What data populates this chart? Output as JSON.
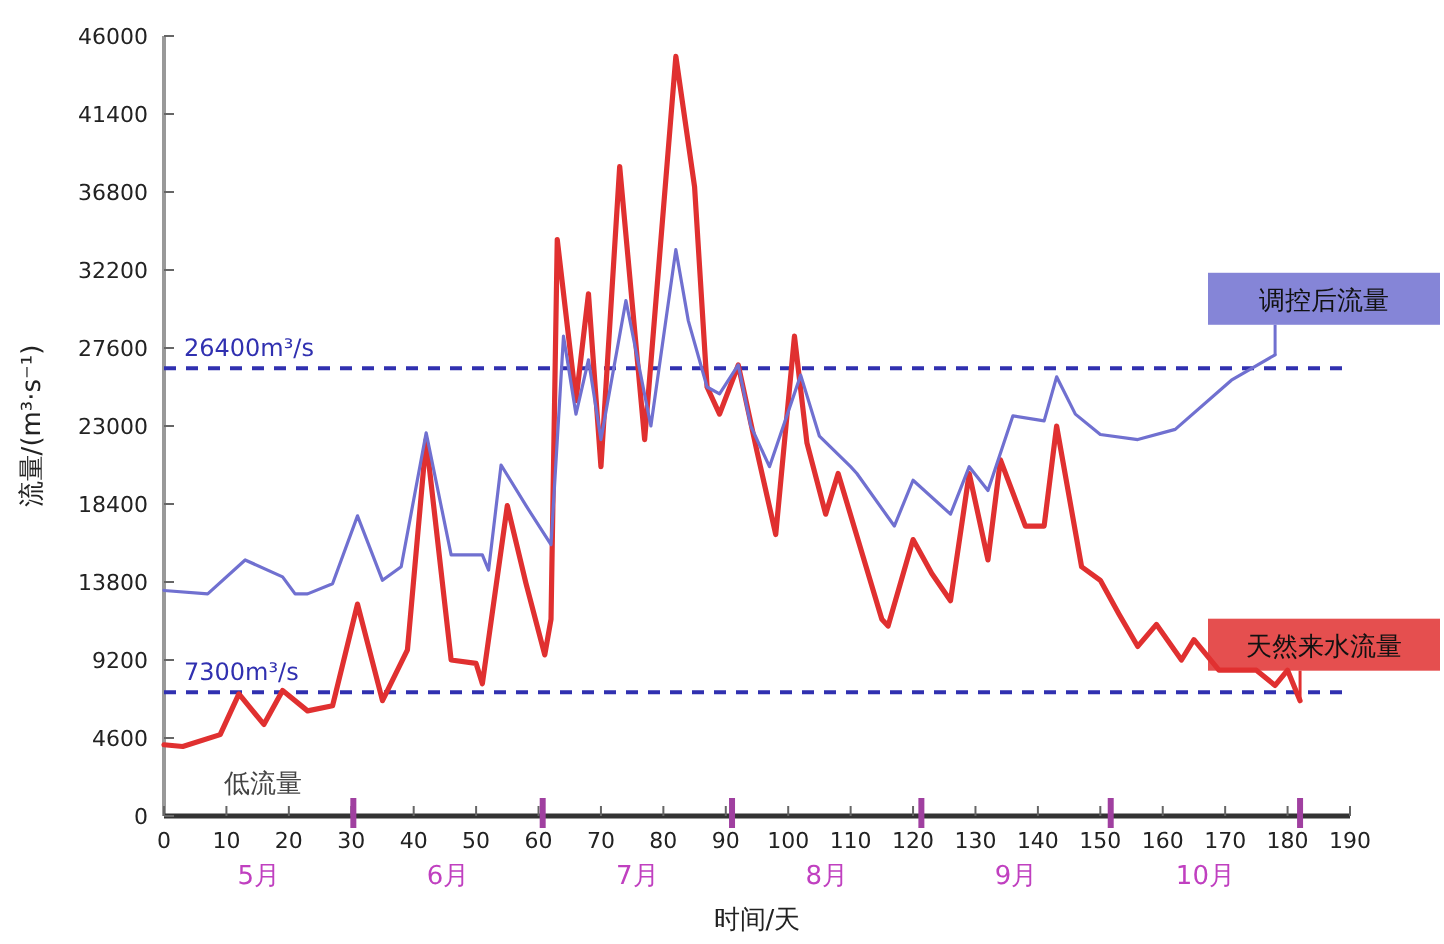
{
  "chart_data": {
    "type": "line",
    "xlabel": "时间/天",
    "ylabel": "流量/(m³·s⁻¹)",
    "xlim": [
      0,
      190
    ],
    "xticks": [
      0,
      10,
      20,
      30,
      40,
      50,
      60,
      70,
      80,
      90,
      100,
      110,
      120,
      130,
      140,
      150,
      160,
      170,
      180,
      190
    ],
    "ylim": [
      0,
      46000
    ],
    "yticks": [
      0,
      4600,
      9200,
      13800,
      18400,
      23000,
      27600,
      32200,
      36800,
      41400,
      46000
    ],
    "grid": false,
    "marker": "none",
    "line_style": "solid",
    "series": [
      {
        "name": "调控后流量",
        "color": "#7070d0",
        "x": [
          0,
          7,
          13,
          19,
          21,
          23,
          27,
          31,
          35,
          38,
          42,
          46,
          51,
          52,
          54,
          58,
          62,
          64,
          66,
          68,
          70,
          74,
          78,
          82,
          84,
          87,
          89,
          92,
          94,
          97,
          102,
          105,
          110,
          111,
          117,
          120,
          126,
          129,
          132,
          136,
          141,
          143,
          146,
          150,
          156,
          162,
          171,
          178
        ],
        "values": [
          13300,
          13100,
          15100,
          14100,
          13100,
          13100,
          13700,
          17700,
          13900,
          14700,
          22600,
          15400,
          15400,
          14500,
          20700,
          18300,
          16000,
          28300,
          23700,
          26900,
          22200,
          30400,
          23000,
          33400,
          29200,
          25300,
          24900,
          26600,
          23000,
          20600,
          26000,
          22400,
          20600,
          20200,
          17100,
          19800,
          17800,
          20600,
          19200,
          23600,
          23300,
          25900,
          23700,
          22500,
          22200,
          22800,
          25700,
          27200
        ]
      },
      {
        "name": "天然来水流量",
        "color": "#e03030",
        "x": [
          0,
          3,
          9,
          12,
          16,
          19,
          23,
          27,
          31,
          35,
          39,
          42,
          46,
          50,
          51,
          55,
          58,
          61,
          62,
          63,
          66,
          68,
          70,
          73,
          77,
          82,
          85,
          87,
          89,
          92,
          95,
          98,
          101,
          103,
          106,
          108,
          115,
          116,
          120,
          123,
          126,
          129,
          132,
          134,
          138,
          141,
          143,
          147,
          150,
          153,
          156,
          159,
          163,
          165,
          169,
          175,
          178,
          180,
          182
        ],
        "values": [
          4200,
          4100,
          4800,
          7200,
          5400,
          7400,
          6200,
          6500,
          12500,
          6800,
          9800,
          22200,
          9200,
          9000,
          7800,
          18300,
          13700,
          9500,
          11600,
          34000,
          24500,
          30800,
          20600,
          38300,
          22200,
          44800,
          37100,
          25300,
          23700,
          26600,
          21500,
          16600,
          28300,
          22000,
          17800,
          20200,
          11600,
          11200,
          16300,
          14300,
          12700,
          20200,
          15100,
          21000,
          17100,
          17100,
          23000,
          14700,
          13900,
          11900,
          10000,
          11300,
          9200,
          10400,
          8600,
          8600,
          7700,
          8600,
          6800
        ]
      }
    ],
    "ref_lines": [
      {
        "axis": "y",
        "value": 26400,
        "label": "26400m³/s",
        "color": "#3030b0",
        "line_style": "dashed"
      },
      {
        "axis": "y",
        "value": 7300,
        "label": "7300m³/s",
        "color": "#3030b0",
        "line_style": "dashed"
      }
    ],
    "annotations": [
      "低流量",
      "5月",
      "6月",
      "7月",
      "8月",
      "9月",
      "10月"
    ]
  }
}
